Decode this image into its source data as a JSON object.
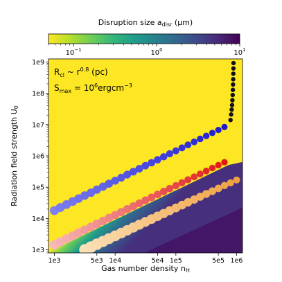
{
  "colorbar": {
    "label_main": "Disruption size a",
    "label_sub": "disr",
    "label_unit": " (μm)",
    "ticks": [
      {
        "value": 0.1,
        "base": "10",
        "exp": "−1"
      },
      {
        "value": 1,
        "base": "10",
        "exp": "0"
      },
      {
        "value": 10,
        "base": "10",
        "exp": "1"
      }
    ],
    "range": [
      0.05,
      10
    ],
    "colormap": [
      "#fde725",
      "#b5de2b",
      "#6ece58",
      "#35b779",
      "#1f9e89",
      "#26828e",
      "#31688e",
      "#3e4989",
      "#482878",
      "#440154"
    ]
  },
  "annotations": {
    "rcl_main": "R",
    "rcl_sub": "cl",
    "rcl_mid": " ~ r",
    "rcl_exp": "0.8",
    "rcl_end": " (pc)",
    "smax_main": "S",
    "smax_sub": "max",
    "smax_mid": " = 10",
    "smax_exp": "6",
    "smax_unit": "ergcm",
    "smax_unit_exp": "−3"
  },
  "chart_data": {
    "type": "heatmap",
    "xlabel_main": "Gas number density n",
    "xlabel_sub": "H",
    "ylabel_main": "Radiation field strength U",
    "ylabel_sub": "0",
    "x_scale": "log",
    "y_scale": "log",
    "xlim": [
      800,
      1250000
    ],
    "ylim": [
      800,
      1250000000
    ],
    "x_ticks": [
      {
        "value": 1000,
        "label": "1e3"
      },
      {
        "value": 5000,
        "label": "5e3"
      },
      {
        "value": 10000,
        "label": "1e4"
      },
      {
        "value": 50000,
        "label": "5e4"
      },
      {
        "value": 100000,
        "label": "1e5"
      },
      {
        "value": 500000,
        "label": "5e5"
      },
      {
        "value": 1000000,
        "label": "1e6"
      }
    ],
    "y_ticks": [
      {
        "value": 1000,
        "label": "1e3"
      },
      {
        "value": 10000,
        "label": "1e4"
      },
      {
        "value": 100000,
        "label": "1e5"
      },
      {
        "value": 1000000,
        "label": "1e6"
      },
      {
        "value": 10000000,
        "label": "1e7"
      },
      {
        "value": 100000000,
        "label": "1e8"
      },
      {
        "value": 1000000000,
        "label": "1e9"
      }
    ],
    "series": [
      {
        "color": "#2323d8",
        "style": "blue-gradient",
        "points": [
          [
            1000,
            18000
          ],
          [
            1250,
            22400
          ],
          [
            1580,
            28000
          ],
          [
            2000,
            35000
          ],
          [
            2500,
            43500
          ],
          [
            3150,
            54000
          ],
          [
            4000,
            67000
          ],
          [
            5000,
            84000
          ],
          [
            6300,
            104000
          ],
          [
            7900,
            130000
          ],
          [
            10000,
            162000
          ],
          [
            12600,
            202000
          ],
          [
            15800,
            252000
          ],
          [
            19900,
            313000
          ],
          [
            25000,
            390000
          ],
          [
            31500,
            486000
          ],
          [
            39700,
            605000
          ],
          [
            50000,
            752000
          ],
          [
            63000,
            937000
          ],
          [
            79000,
            1170000
          ],
          [
            100000,
            1450000
          ],
          [
            126000,
            1810000
          ],
          [
            158000,
            2250000
          ],
          [
            200000,
            2800000
          ],
          [
            251000,
            3490000
          ],
          [
            316000,
            4340000
          ],
          [
            398000,
            5410000
          ],
          [
            501000,
            6730000
          ],
          [
            631000,
            8380000
          ]
        ]
      },
      {
        "color": "#111111",
        "style": "black",
        "points": [
          [
            794000,
            14000000
          ],
          [
            813000,
            21000000
          ],
          [
            829000,
            30000000
          ],
          [
            842000,
            42000000
          ],
          [
            852000,
            60000000
          ],
          [
            861000,
            88000000
          ],
          [
            868000,
            128000000
          ],
          [
            874000,
            190000000
          ],
          [
            879000,
            280000000
          ],
          [
            883000,
            420000000
          ],
          [
            886000,
            620000000
          ],
          [
            889000,
            920000000
          ]
        ]
      },
      {
        "color": "#e02020",
        "style": "red-gradient",
        "points": [
          [
            1000,
            1450
          ],
          [
            1250,
            1810
          ],
          [
            1580,
            2260
          ],
          [
            2000,
            2810
          ],
          [
            2500,
            3500
          ],
          [
            3150,
            4350
          ],
          [
            4000,
            5400
          ],
          [
            5000,
            6720
          ],
          [
            6300,
            8350
          ],
          [
            7900,
            10400
          ],
          [
            10000,
            12900
          ],
          [
            12600,
            16000
          ],
          [
            15800,
            19900
          ],
          [
            19900,
            24700
          ],
          [
            25000,
            30700
          ],
          [
            31500,
            38100
          ],
          [
            39700,
            47300
          ],
          [
            50000,
            58700
          ],
          [
            63000,
            72900
          ],
          [
            79000,
            90500
          ],
          [
            100000,
            112000
          ],
          [
            126000,
            139000
          ],
          [
            158000,
            173000
          ],
          [
            200000,
            214000
          ],
          [
            251000,
            266000
          ],
          [
            316000,
            330000
          ],
          [
            398000,
            410000
          ],
          [
            501000,
            508000
          ],
          [
            631000,
            630000
          ]
        ]
      },
      {
        "color": "#f0a040",
        "style": "orange-gradient",
        "points": [
          [
            3200,
            1000
          ],
          [
            4000,
            1230
          ],
          [
            5000,
            1510
          ],
          [
            6300,
            1860
          ],
          [
            7900,
            2280
          ],
          [
            10000,
            2800
          ],
          [
            12600,
            3440
          ],
          [
            15800,
            4220
          ],
          [
            19900,
            5180
          ],
          [
            25000,
            6360
          ],
          [
            31500,
            7810
          ],
          [
            39700,
            9590
          ],
          [
            50000,
            11800
          ],
          [
            63000,
            14500
          ],
          [
            79000,
            17800
          ],
          [
            100000,
            21800
          ],
          [
            126000,
            26800
          ],
          [
            158000,
            32900
          ],
          [
            200000,
            40400
          ],
          [
            251000,
            49600
          ],
          [
            316000,
            60900
          ],
          [
            398000,
            74700
          ],
          [
            501000,
            91700
          ],
          [
            631000,
            113000
          ],
          [
            794000,
            138000
          ],
          [
            1000000,
            170000
          ]
        ]
      }
    ]
  }
}
